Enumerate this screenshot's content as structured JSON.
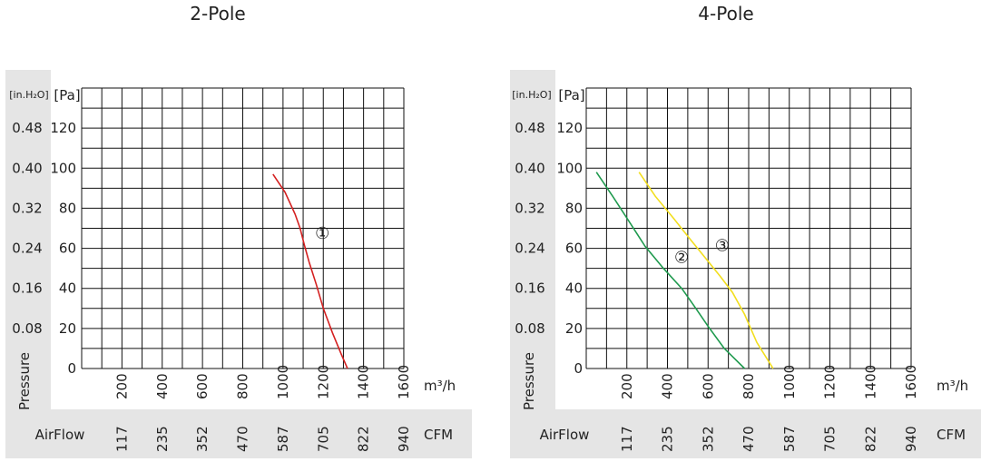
{
  "colors": {
    "panel_bg": "#e5e5e5",
    "grid": "#111111",
    "red": "#d42020",
    "green": "#1f9a4e",
    "yellow": "#f2de1e"
  },
  "chart_data": [
    {
      "type": "line",
      "title": "2-Pole",
      "y_axis_title": "Pressure",
      "y_unit_left": "[in.H₂O]",
      "y_unit_right": "[Pa]",
      "x_unit_metric": "m³/h",
      "x_unit_imperial": "CFM",
      "airflow_label": "AirFlow",
      "x_ticks_m3h": [
        "200",
        "400",
        "600",
        "800",
        "1000",
        "1200",
        "1400",
        "1600"
      ],
      "x_ticks_cfm": [
        "117",
        "235",
        "352",
        "470",
        "587",
        "705",
        "822",
        "940"
      ],
      "y_ticks_pa": [
        "0",
        "20",
        "40",
        "60",
        "80",
        "100",
        "120"
      ],
      "y_ticks_inh2o": [
        "0.08",
        "0.16",
        "0.24",
        "0.32",
        "0.40",
        "0.48"
      ],
      "xlim": [
        0,
        1600
      ],
      "ylim": [
        0,
        140
      ],
      "grid": true,
      "series": [
        {
          "label": "①",
          "color": "#d42020",
          "x": [
            950,
            1010,
            1060,
            1085,
            1105,
            1130,
            1165,
            1200,
            1245,
            1290,
            1320
          ],
          "y": [
            97,
            88,
            77,
            70,
            62,
            53,
            42,
            30,
            18,
            7,
            0
          ]
        }
      ]
    },
    {
      "type": "line",
      "title": "4-Pole",
      "y_axis_title": "Pressure",
      "y_unit_left": "[in.H₂O]",
      "y_unit_right": "[Pa]",
      "x_unit_metric": "m³/h",
      "x_unit_imperial": "CFM",
      "airflow_label": "AirFlow",
      "x_ticks_m3h": [
        "200",
        "400",
        "600",
        "800",
        "1000",
        "1200",
        "1400",
        "1600"
      ],
      "x_ticks_cfm": [
        "117",
        "235",
        "352",
        "470",
        "587",
        "705",
        "822",
        "940"
      ],
      "y_ticks_pa": [
        "0",
        "20",
        "40",
        "60",
        "80",
        "100",
        "120"
      ],
      "y_ticks_inh2o": [
        "0.08",
        "0.16",
        "0.24",
        "0.32",
        "0.40",
        "0.48"
      ],
      "xlim": [
        0,
        1600
      ],
      "ylim": [
        0,
        140
      ],
      "grid": true,
      "series": [
        {
          "label": "②",
          "color": "#1f9a4e",
          "x": [
            50,
            130,
            220,
            290,
            380,
            470,
            540,
            600,
            680,
            780
          ],
          "y": [
            98,
            86,
            72,
            61,
            50,
            40,
            30,
            21,
            10,
            0
          ]
        },
        {
          "label": "③",
          "color": "#f2de1e",
          "x": [
            260,
            340,
            430,
            500,
            580,
            660,
            720,
            780,
            840,
            920
          ],
          "y": [
            98,
            86,
            75,
            66,
            56,
            46,
            38,
            27,
            13,
            0
          ]
        }
      ]
    }
  ]
}
